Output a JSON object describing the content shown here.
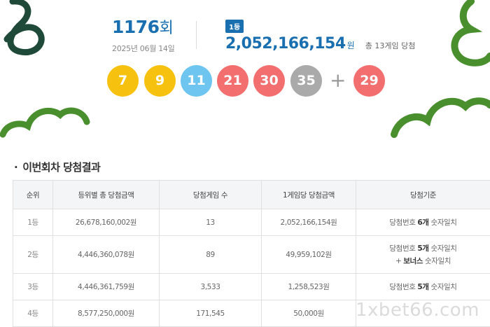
{
  "header": {
    "round_number": "1176",
    "round_suffix": "회",
    "draw_date": "2025년 06월 14일",
    "first_prize_badge": "1등",
    "first_prize_amount": "2,052,166,154",
    "first_prize_unit": "원",
    "first_prize_winners": "총 13게임 당첨"
  },
  "balls": {
    "numbers": [
      "7",
      "9",
      "11",
      "21",
      "30",
      "35"
    ],
    "plus": "+",
    "bonus": "29",
    "colors": {
      "yellow": "#f7c20f",
      "blue": "#6ec5f0",
      "red": "#f36f6f",
      "gray": "#aaaaaa"
    }
  },
  "section": {
    "bullet": "·",
    "title": "이번회차 당첨결과"
  },
  "table": {
    "headers": [
      "순위",
      "등위별 총 당첨금액",
      "당첨게임 수",
      "1게임당 당첨금액",
      "당첨기준"
    ],
    "rows": [
      {
        "rank": "1등",
        "total": "26,678,160,002원",
        "games": "13",
        "per_game": "2,052,166,154원",
        "crit_pre": "당첨번호 ",
        "crit_count": "6개",
        "crit_post": " 숫자일치",
        "crit_line2": ""
      },
      {
        "rank": "2등",
        "total": "4,446,360,078원",
        "games": "89",
        "per_game": "49,959,102원",
        "crit_pre": "당첨번호 ",
        "crit_count": "5개",
        "crit_post": " 숫자일치",
        "crit_line2_pre": "+ ",
        "crit_line2_bold": "보너스",
        "crit_line2_post": " 숫자일치"
      },
      {
        "rank": "3등",
        "total": "4,446,361,759원",
        "games": "3,533",
        "per_game": "1,258,523원",
        "crit_pre": "당첨번호 ",
        "crit_count": "5개",
        "crit_post": " 숫자일치",
        "crit_line2": ""
      },
      {
        "rank": "4등",
        "total": "8,577,250,000원",
        "games": "171,545",
        "per_game": "50,000원",
        "crit_pre": "",
        "crit_count": "",
        "crit_post": "",
        "crit_line2": ""
      }
    ]
  },
  "watermark": "1xbet66.com",
  "decor_colors": {
    "dark_green": "#1f4a3a",
    "green": "#4a8f2e"
  }
}
